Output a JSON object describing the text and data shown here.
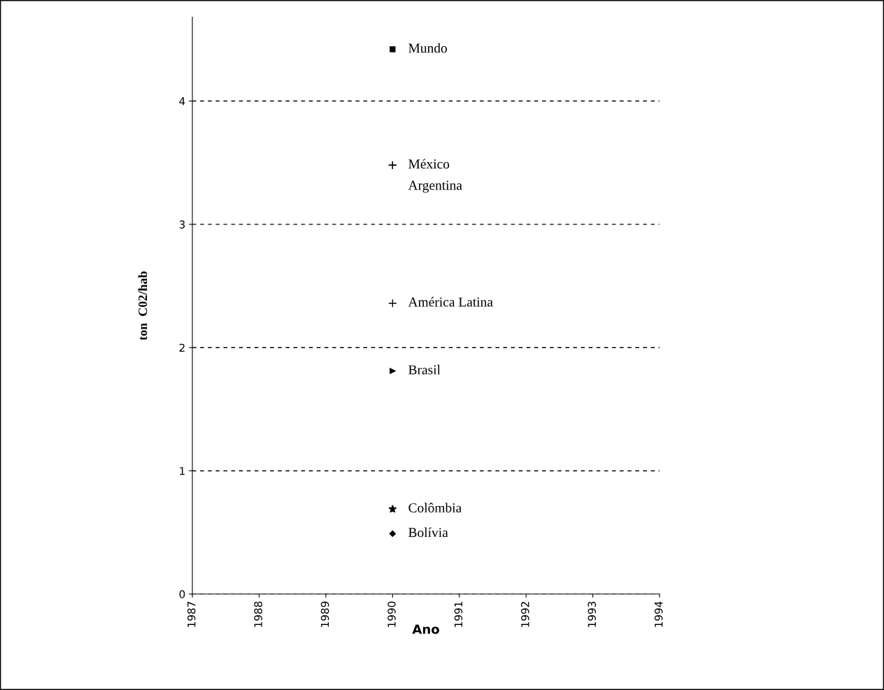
{
  "chart_data": {
    "type": "scatter",
    "xlabel": "Ano",
    "ylabel": "ton  C02/hab",
    "xlim": [
      1987,
      1994
    ],
    "xticks": [
      1987,
      1988,
      1989,
      1990,
      1991,
      1992,
      1993,
      1994
    ],
    "ylim": [
      0,
      4.68
    ],
    "yticks": [
      0,
      1,
      2,
      3,
      4
    ],
    "grid": "y",
    "x": [
      1990
    ],
    "series": [
      {
        "name": "Mundo",
        "color": "#000000",
        "marker": "square",
        "values": [
          4.42
        ]
      },
      {
        "name": "México",
        "color": "#000000",
        "marker": "cross",
        "values": [
          3.48
        ]
      },
      {
        "name": "Argentina",
        "color": "#000000",
        "marker": "cross",
        "values": [
          3.48
        ]
      },
      {
        "name": "América Latina",
        "color": "#000000",
        "marker": "cross",
        "values": [
          2.36
        ]
      },
      {
        "name": "Brasil",
        "color": "#000000",
        "marker": "triangle",
        "values": [
          1.81
        ]
      },
      {
        "name": "Colômbia",
        "color": "#000000",
        "marker": "star",
        "values": [
          0.69
        ]
      },
      {
        "name": "Bolívia",
        "color": "#000000",
        "marker": "diamond",
        "values": [
          0.49
        ]
      }
    ]
  }
}
